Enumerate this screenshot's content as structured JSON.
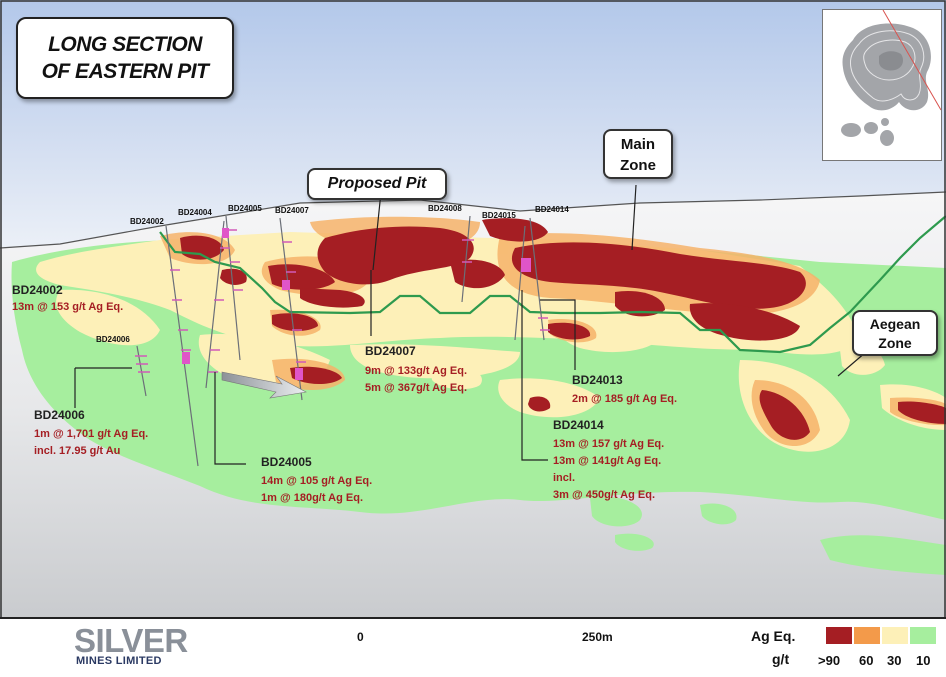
{
  "title": {
    "line1": "LONG SECTION",
    "line2": "OF EASTERN PIT"
  },
  "callouts": {
    "proposed_pit": "Proposed Pit",
    "main_zone": {
      "line1": "Main",
      "line2": "Zone"
    },
    "aegean_zone": {
      "line1": "Aegean",
      "line2": "Zone"
    }
  },
  "collar_labels": [
    "BD24002",
    "BD24004",
    "BD24005",
    "BD24007",
    "BD24008",
    "BD24015",
    "BD24014",
    "BD24006"
  ],
  "intercepts": {
    "bd24002": {
      "name": "BD24002",
      "lines": [
        "13m @ 153 g/t Ag Eq."
      ]
    },
    "bd24006": {
      "name": "BD24006",
      "lines": [
        "1m @ 1,701 g/t Ag Eq.",
        "incl. 17.95 g/t Au"
      ]
    },
    "bd24005": {
      "name": "BD24005",
      "lines": [
        "14m @ 105 g/t Ag Eq.",
        "1m @ 180g/t Ag Eq."
      ]
    },
    "bd24007": {
      "name": "BD24007",
      "lines": [
        "9m @ 133g/t Ag Eq.",
        "5m @ 367g/t Ag Eq."
      ]
    },
    "bd24013": {
      "name": "BD24013",
      "lines": [
        "2m @ 185 g/t Ag Eq."
      ]
    },
    "bd24014": {
      "name": "BD24014",
      "lines": [
        "13m @ 157 g/t Ag Eq.",
        "13m @ 141g/t Ag Eq.",
        "incl.",
        "3m @ 450g/t Ag Eq."
      ]
    }
  },
  "footer": {
    "logo": {
      "name": "SILVER",
      "sub": "MINES LIMITED"
    },
    "scale": {
      "start": "0",
      "end": "250m"
    },
    "legend": {
      "title_line1": "Ag Eq.",
      "title_line2": "g/t",
      "classes": [
        {
          "label": ">90",
          "color": "#a51e23"
        },
        {
          "label": "60",
          "color": "#f39a4a"
        },
        {
          "label": "30",
          "color": "#fdf0b8"
        },
        {
          "label": "10",
          "color": "#a6ee9e"
        }
      ]
    }
  },
  "colors": {
    "high_grade": "#a51e23",
    "medium_grade": "#f39a4a",
    "low_grade": "#fdf0b8",
    "anomalous": "#a6ee9e",
    "pit_outline": "#2e9a4e",
    "sky": "#c9d8ef"
  }
}
